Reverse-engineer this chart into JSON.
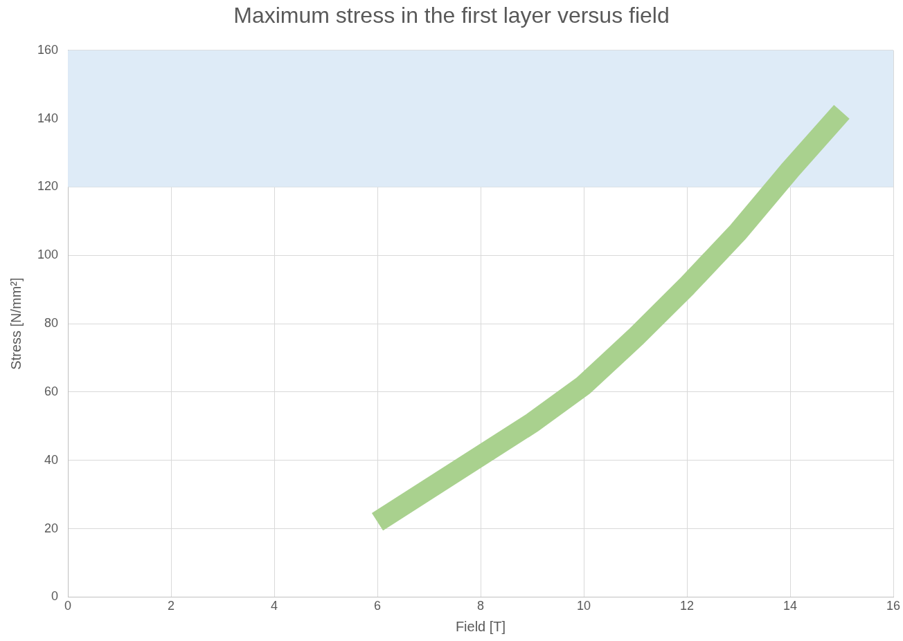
{
  "chart_data": {
    "type": "line",
    "title": "Maximum stress in the first layer versus field",
    "xlabel": "Field [T]",
    "ylabel": "Stress [N/mm²]",
    "x": [
      6,
      9,
      10,
      11,
      12,
      13,
      14,
      15
    ],
    "series": [
      {
        "color": "#a9d18e",
        "values": [
          22,
          51,
          62,
          76,
          91,
          107,
          125,
          142
        ]
      }
    ],
    "xlim": [
      0,
      16
    ],
    "xticks": [
      0,
      2,
      4,
      6,
      8,
      10,
      12,
      14,
      16
    ],
    "ylim": [
      0,
      160
    ],
    "yticks": [
      0,
      20,
      40,
      60,
      80,
      100,
      120,
      140,
      160
    ],
    "bands": [
      {
        "axis": "y",
        "from": 120,
        "to": 160,
        "color": "#deebf7"
      }
    ],
    "grid": true,
    "legend": false,
    "marker": "none",
    "line_style": "solid"
  }
}
